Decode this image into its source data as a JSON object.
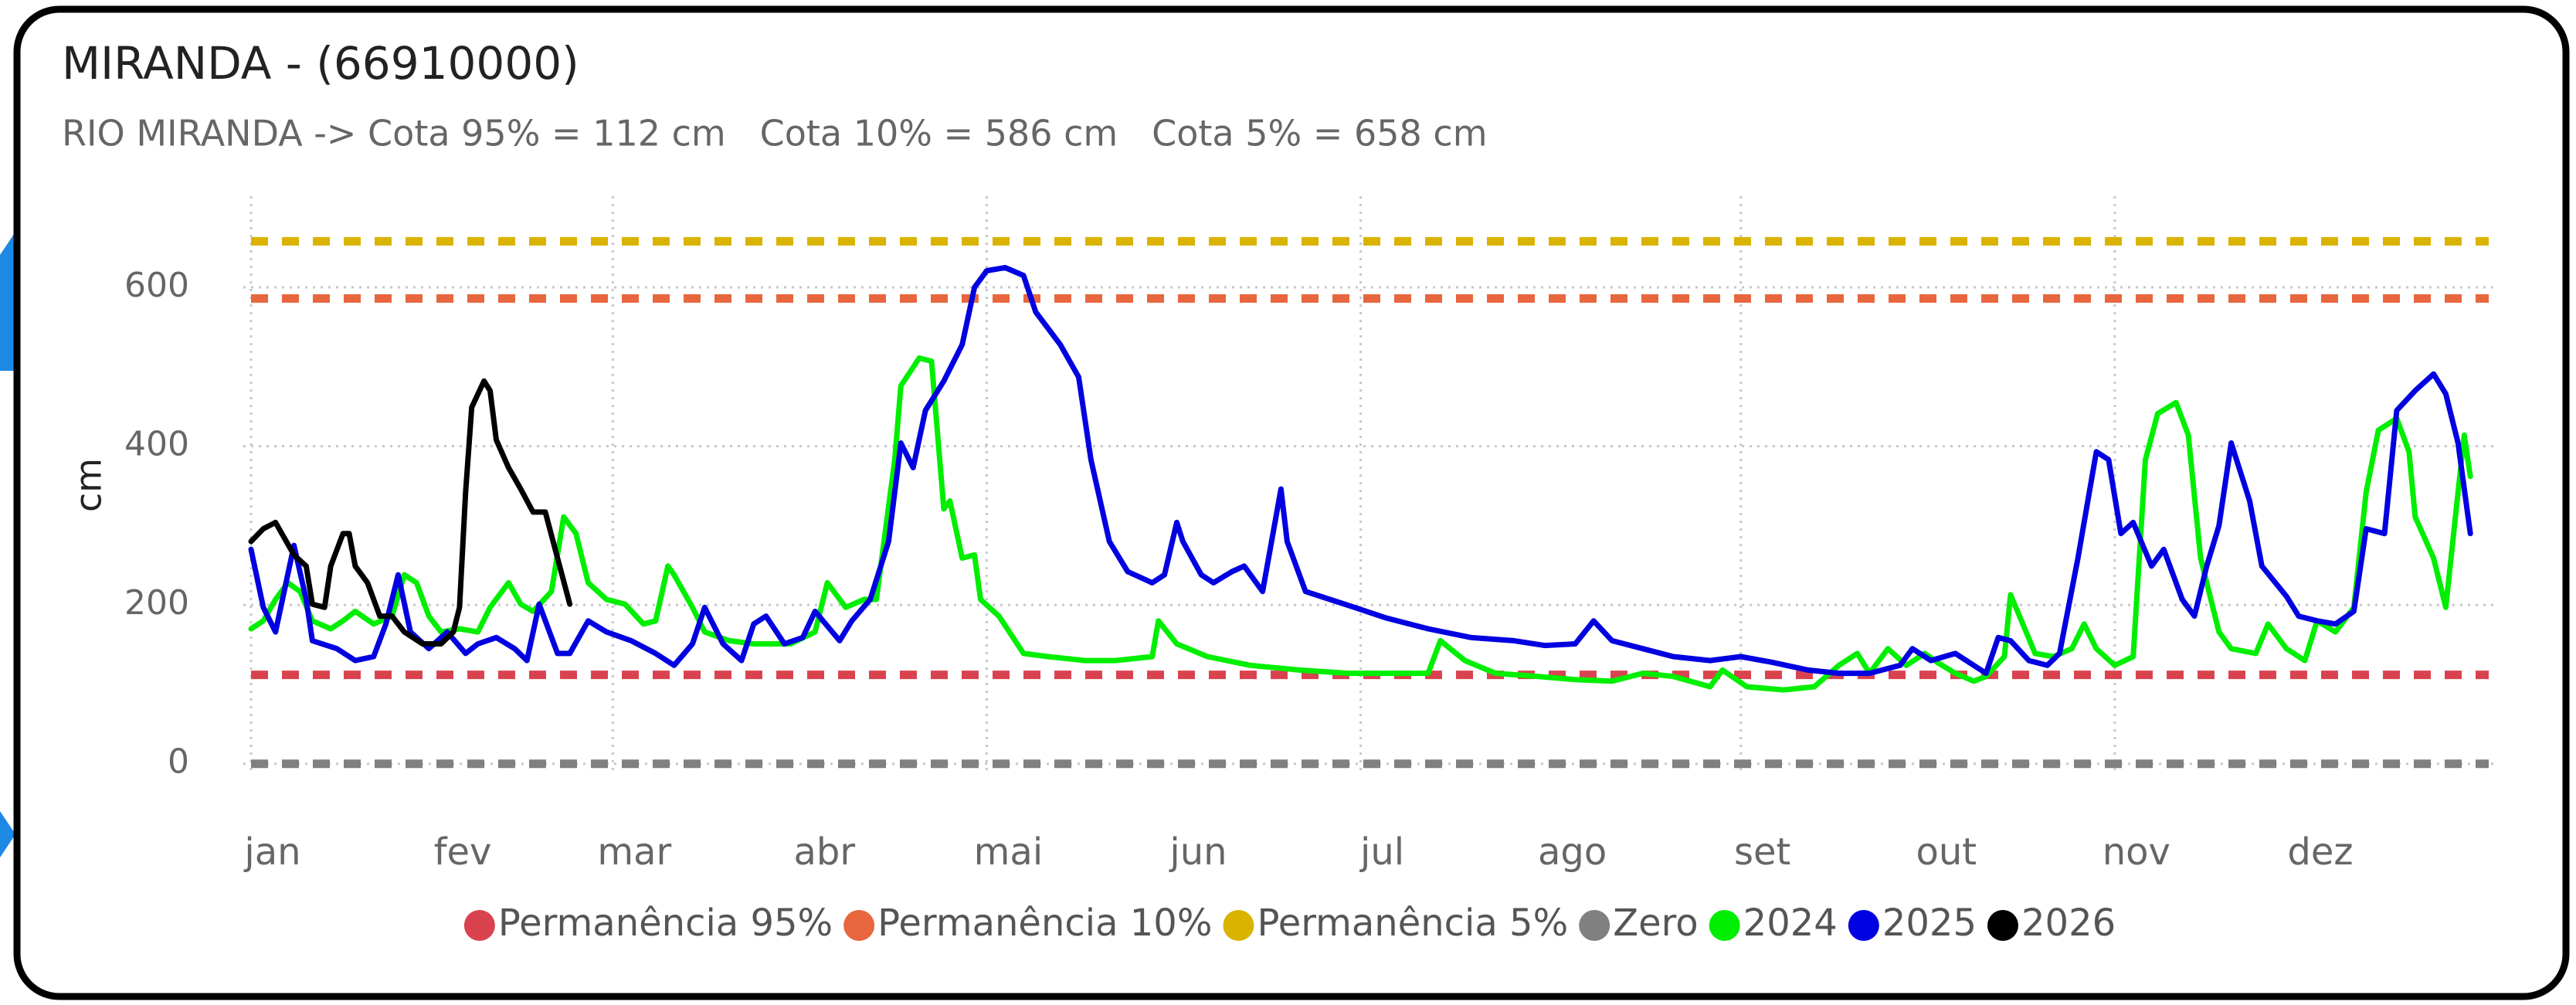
{
  "chart_data": {
    "type": "line",
    "title": "MIRANDA - (66910000)",
    "subtitle": "RIO MIRANDA -> Cota 95% = 112 cm   Cota 10% = 586 cm   Cota 5% = 658 cm",
    "y_label": "cm",
    "xlim": [
      1,
      366
    ],
    "xticks": [
      {
        "value": 1,
        "label": "jan"
      },
      {
        "value": 32,
        "label": "fev"
      },
      {
        "value": 60,
        "label": "mar"
      },
      {
        "value": 91,
        "label": "abr"
      },
      {
        "value": 121,
        "label": "mai"
      },
      {
        "value": 152,
        "label": "jun"
      },
      {
        "value": 182,
        "label": "jul"
      },
      {
        "value": 213,
        "label": "ago"
      },
      {
        "value": 244,
        "label": "set"
      },
      {
        "value": 274,
        "label": "out"
      },
      {
        "value": 305,
        "label": "nov"
      },
      {
        "value": 335,
        "label": "dez"
      }
    ],
    "ylim": [
      -10,
      710
    ],
    "yticks": [
      0,
      200,
      400,
      600
    ],
    "grid": true,
    "series": [
      {
        "name": "Permanência 95%",
        "color": "#d9434f",
        "dashed": true,
        "x": [
          1,
          366
        ],
        "values": [
          112,
          112
        ]
      },
      {
        "name": "Permanência 10%",
        "color": "#e8663d",
        "dashed": true,
        "x": [
          1,
          366
        ],
        "values": [
          586,
          586
        ]
      },
      {
        "name": "Permanência 5%",
        "color": "#d9b300",
        "dashed": true,
        "x": [
          1,
          366
        ],
        "values": [
          658,
          658
        ]
      },
      {
        "name": "Zero",
        "color": "#808080",
        "dashed": true,
        "x": [
          1,
          366
        ],
        "values": [
          0,
          0
        ]
      },
      {
        "name": "2024",
        "color": "#00ee00",
        "dashed": false,
        "x": [
          1,
          3,
          5,
          7,
          9,
          11,
          14,
          16,
          18,
          21,
          24,
          26,
          28,
          30,
          32,
          35,
          38,
          40,
          43,
          45,
          47,
          50,
          52,
          54,
          56,
          59,
          62,
          65,
          67,
          69,
          70,
          73,
          75,
          79,
          83,
          89,
          93,
          95,
          98,
          101,
          103,
          106,
          107,
          110,
          112,
          114,
          115,
          117,
          119,
          120,
          123,
          127,
          131,
          137,
          142,
          148,
          149,
          152,
          157,
          164,
          172,
          180,
          188,
          193,
          195,
          199,
          204,
          211,
          217,
          223,
          228,
          233,
          239,
          241,
          245,
          251,
          256,
          260,
          263,
          265,
          268,
          271,
          274,
          276,
          279,
          282,
          284,
          287,
          288,
          290,
          292,
          295,
          298,
          300,
          302,
          305,
          308,
          310,
          312,
          315,
          317,
          319,
          322,
          324,
          328,
          330,
          333,
          336,
          338,
          341,
          344,
          346,
          348,
          351,
          353,
          354,
          357,
          359,
          361,
          362,
          363
        ],
        "values": [
          170,
          180,
          207,
          228,
          217,
          180,
          170,
          180,
          192,
          176,
          186,
          238,
          228,
          186,
          166,
          170,
          166,
          197,
          228,
          201,
          192,
          217,
          311,
          290,
          228,
          207,
          201,
          176,
          180,
          249,
          238,
          197,
          166,
          155,
          151,
          151,
          166,
          228,
          197,
          207,
          207,
          383,
          476,
          511,
          507,
          321,
          331,
          259,
          263,
          207,
          186,
          139,
          135,
          130,
          130,
          135,
          180,
          151,
          135,
          124,
          118,
          114,
          114,
          114,
          155,
          130,
          114,
          110,
          106,
          104,
          114,
          110,
          97,
          118,
          97,
          93,
          97,
          124,
          139,
          114,
          145,
          124,
          139,
          128,
          114,
          104,
          110,
          135,
          213,
          176,
          139,
          135,
          145,
          176,
          145,
          124,
          135,
          383,
          441,
          455,
          414,
          259,
          166,
          145,
          139,
          176,
          145,
          130,
          180,
          166,
          197,
          342,
          420,
          435,
          393,
          311,
          259,
          197,
          342,
          414,
          362
        ]
      },
      {
        "name": "2025",
        "color": "#0000e0",
        "dashed": false,
        "x": [
          1,
          3,
          5,
          8,
          10,
          11,
          15,
          18,
          21,
          23,
          25,
          27,
          30,
          33,
          36,
          38,
          41,
          44,
          46,
          48,
          51,
          53,
          56,
          59,
          63,
          67,
          70,
          73,
          75,
          78,
          81,
          83,
          85,
          88,
          91,
          93,
          97,
          99,
          102,
          105,
          107,
          109,
          111,
          114,
          117,
          119,
          121,
          124,
          127,
          129,
          133,
          136,
          138,
          141,
          144,
          148,
          150,
          152,
          153,
          156,
          158,
          161,
          163,
          166,
          169,
          170,
          173,
          177,
          181,
          186,
          193,
          200,
          207,
          212,
          217,
          220,
          223,
          228,
          233,
          239,
          244,
          249,
          255,
          260,
          265,
          270,
          272,
          275,
          279,
          282,
          284,
          286,
          288,
          291,
          294,
          296,
          299,
          302,
          304,
          306,
          308,
          311,
          313,
          316,
          318,
          320,
          322,
          324,
          327,
          329,
          333,
          335,
          338,
          341,
          344,
          346,
          349,
          351,
          354,
          357,
          359,
          361,
          363
        ],
        "values": [
          270,
          197,
          166,
          275,
          207,
          155,
          145,
          130,
          135,
          176,
          238,
          166,
          145,
          166,
          139,
          151,
          159,
          145,
          130,
          201,
          139,
          139,
          180,
          166,
          155,
          139,
          124,
          151,
          197,
          151,
          130,
          176,
          186,
          151,
          159,
          192,
          155,
          180,
          207,
          280,
          404,
          373,
          445,
          482,
          528,
          600,
          621,
          625,
          615,
          569,
          528,
          487,
          383,
          280,
          242,
          228,
          238,
          304,
          280,
          238,
          228,
          242,
          249,
          217,
          346,
          280,
          217,
          207,
          197,
          184,
          170,
          159,
          155,
          149,
          151,
          180,
          155,
          145,
          135,
          130,
          135,
          128,
          118,
          114,
          114,
          124,
          145,
          130,
          139,
          124,
          114,
          159,
          155,
          130,
          124,
          139,
          259,
          393,
          383,
          290,
          304,
          249,
          270,
          207,
          186,
          249,
          300,
          404,
          331,
          249,
          211,
          186,
          180,
          176,
          192,
          296,
          290,
          445,
          470,
          491,
          466,
          404,
          290
        ]
      },
      {
        "name": "2026",
        "color": "#000000",
        "dashed": false,
        "x": [
          1,
          3,
          5,
          8,
          10,
          11,
          13,
          14,
          16,
          17,
          18,
          20,
          22,
          24,
          26,
          29,
          32,
          34,
          35,
          36,
          37,
          39,
          40,
          41,
          43,
          45,
          47,
          49,
          51,
          53
        ],
        "values": [
          280,
          296,
          304,
          263,
          249,
          201,
          197,
          249,
          290,
          290,
          249,
          228,
          186,
          186,
          166,
          151,
          151,
          166,
          197,
          342,
          449,
          482,
          470,
          408,
          373,
          346,
          317,
          317,
          259,
          201
        ]
      }
    ]
  }
}
